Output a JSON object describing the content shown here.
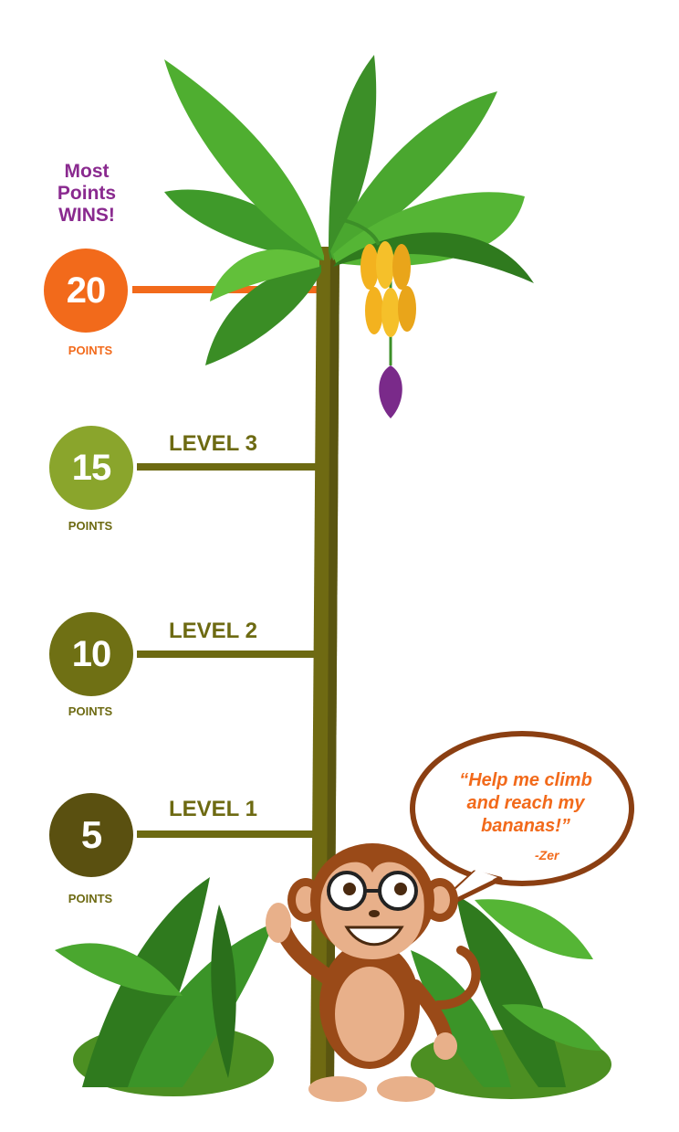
{
  "headline": {
    "line1": "Most",
    "line2": "Points",
    "line3": "WINS!"
  },
  "colors": {
    "top_tier": "#f26a1b",
    "level3": "#8aa52c",
    "level2": "#6f7014",
    "level1": "#5a5010",
    "trunk": "#6f6a12",
    "leaf": "#3f9a2a",
    "banana": "#f3b21f",
    "flower": "#7a2a8a",
    "headline": "#8a2a8f",
    "bubble_border": "#8b3f12"
  },
  "tiers": [
    {
      "points": "20",
      "points_label": "POINTS",
      "level_label": ""
    },
    {
      "points": "15",
      "points_label": "POINTS",
      "level_label": "LEVEL 3"
    },
    {
      "points": "10",
      "points_label": "POINTS",
      "level_label": "LEVEL 2"
    },
    {
      "points": "5",
      "points_label": "POINTS",
      "level_label": "LEVEL 1"
    }
  ],
  "speech": {
    "line1": "“Help me climb",
    "line2": "and reach my",
    "line3": "bananas!”",
    "signature": "-Zer"
  },
  "icons": {
    "tree": "banana-tree-icon",
    "bunch": "banana-bunch-icon",
    "mascot": "monkey-icon",
    "foliage": "jungle-plants-icon"
  }
}
